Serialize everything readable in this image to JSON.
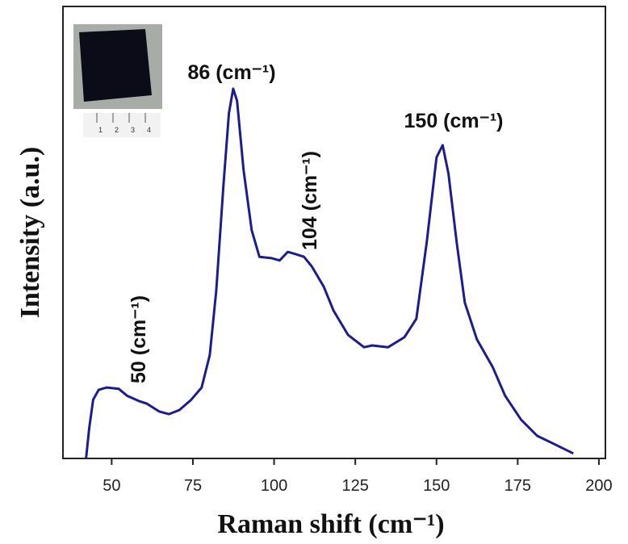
{
  "chart_data": {
    "type": "line",
    "x_label": "Raman shift (cm⁻¹)",
    "y_label": "Intensity (a.u.)",
    "xlim": [
      35,
      202
    ],
    "ylim": [
      0,
      100
    ],
    "xticks": [
      50,
      75,
      100,
      125,
      150,
      175,
      200
    ],
    "series": [
      {
        "color": "#1c1c8f",
        "x": [
          42.1,
          43.1,
          44.3,
          46,
          48.5,
          52.2,
          54.7,
          58.4,
          60.9,
          64.6,
          67.6,
          70.8,
          74.5,
          77.7,
          80.2,
          82.2,
          84.4,
          86.1,
          87.4,
          88.6,
          90.6,
          93.1,
          95.5,
          99.3,
          101.7,
          104.2,
          106.7,
          109.2,
          111.6,
          115.3,
          118.3,
          122.8,
          127.7,
          130.2,
          135.1,
          140.1,
          143.8,
          147,
          150,
          151.9,
          153.7,
          156.2,
          158.7,
          162.4,
          167.3,
          171.1,
          176,
          181,
          187.1,
          192.1
        ],
        "values": [
          0,
          6.8,
          13,
          15.2,
          15.7,
          15.4,
          13.9,
          12.7,
          12.1,
          10.4,
          9.8,
          10.7,
          13,
          15.7,
          22.9,
          37.1,
          60.4,
          76.4,
          81.8,
          79.1,
          63.9,
          50.5,
          44.6,
          44.3,
          43.8,
          45.7,
          45.2,
          44.6,
          42.5,
          38,
          32.7,
          27.3,
          24.6,
          25,
          24.6,
          26.8,
          30.9,
          47.9,
          66.6,
          69.3,
          63,
          47.9,
          34.5,
          26.4,
          20.2,
          13.9,
          8.6,
          5,
          2.9,
          1.1
        ]
      }
    ],
    "annotations": [
      "50 (cm⁻¹)",
      "86 (cm⁻¹)",
      "104 (cm⁻¹)",
      "150 (cm⁻¹)"
    ],
    "inset_ruler_labels": [
      "1",
      "2",
      "3",
      "4"
    ]
  }
}
